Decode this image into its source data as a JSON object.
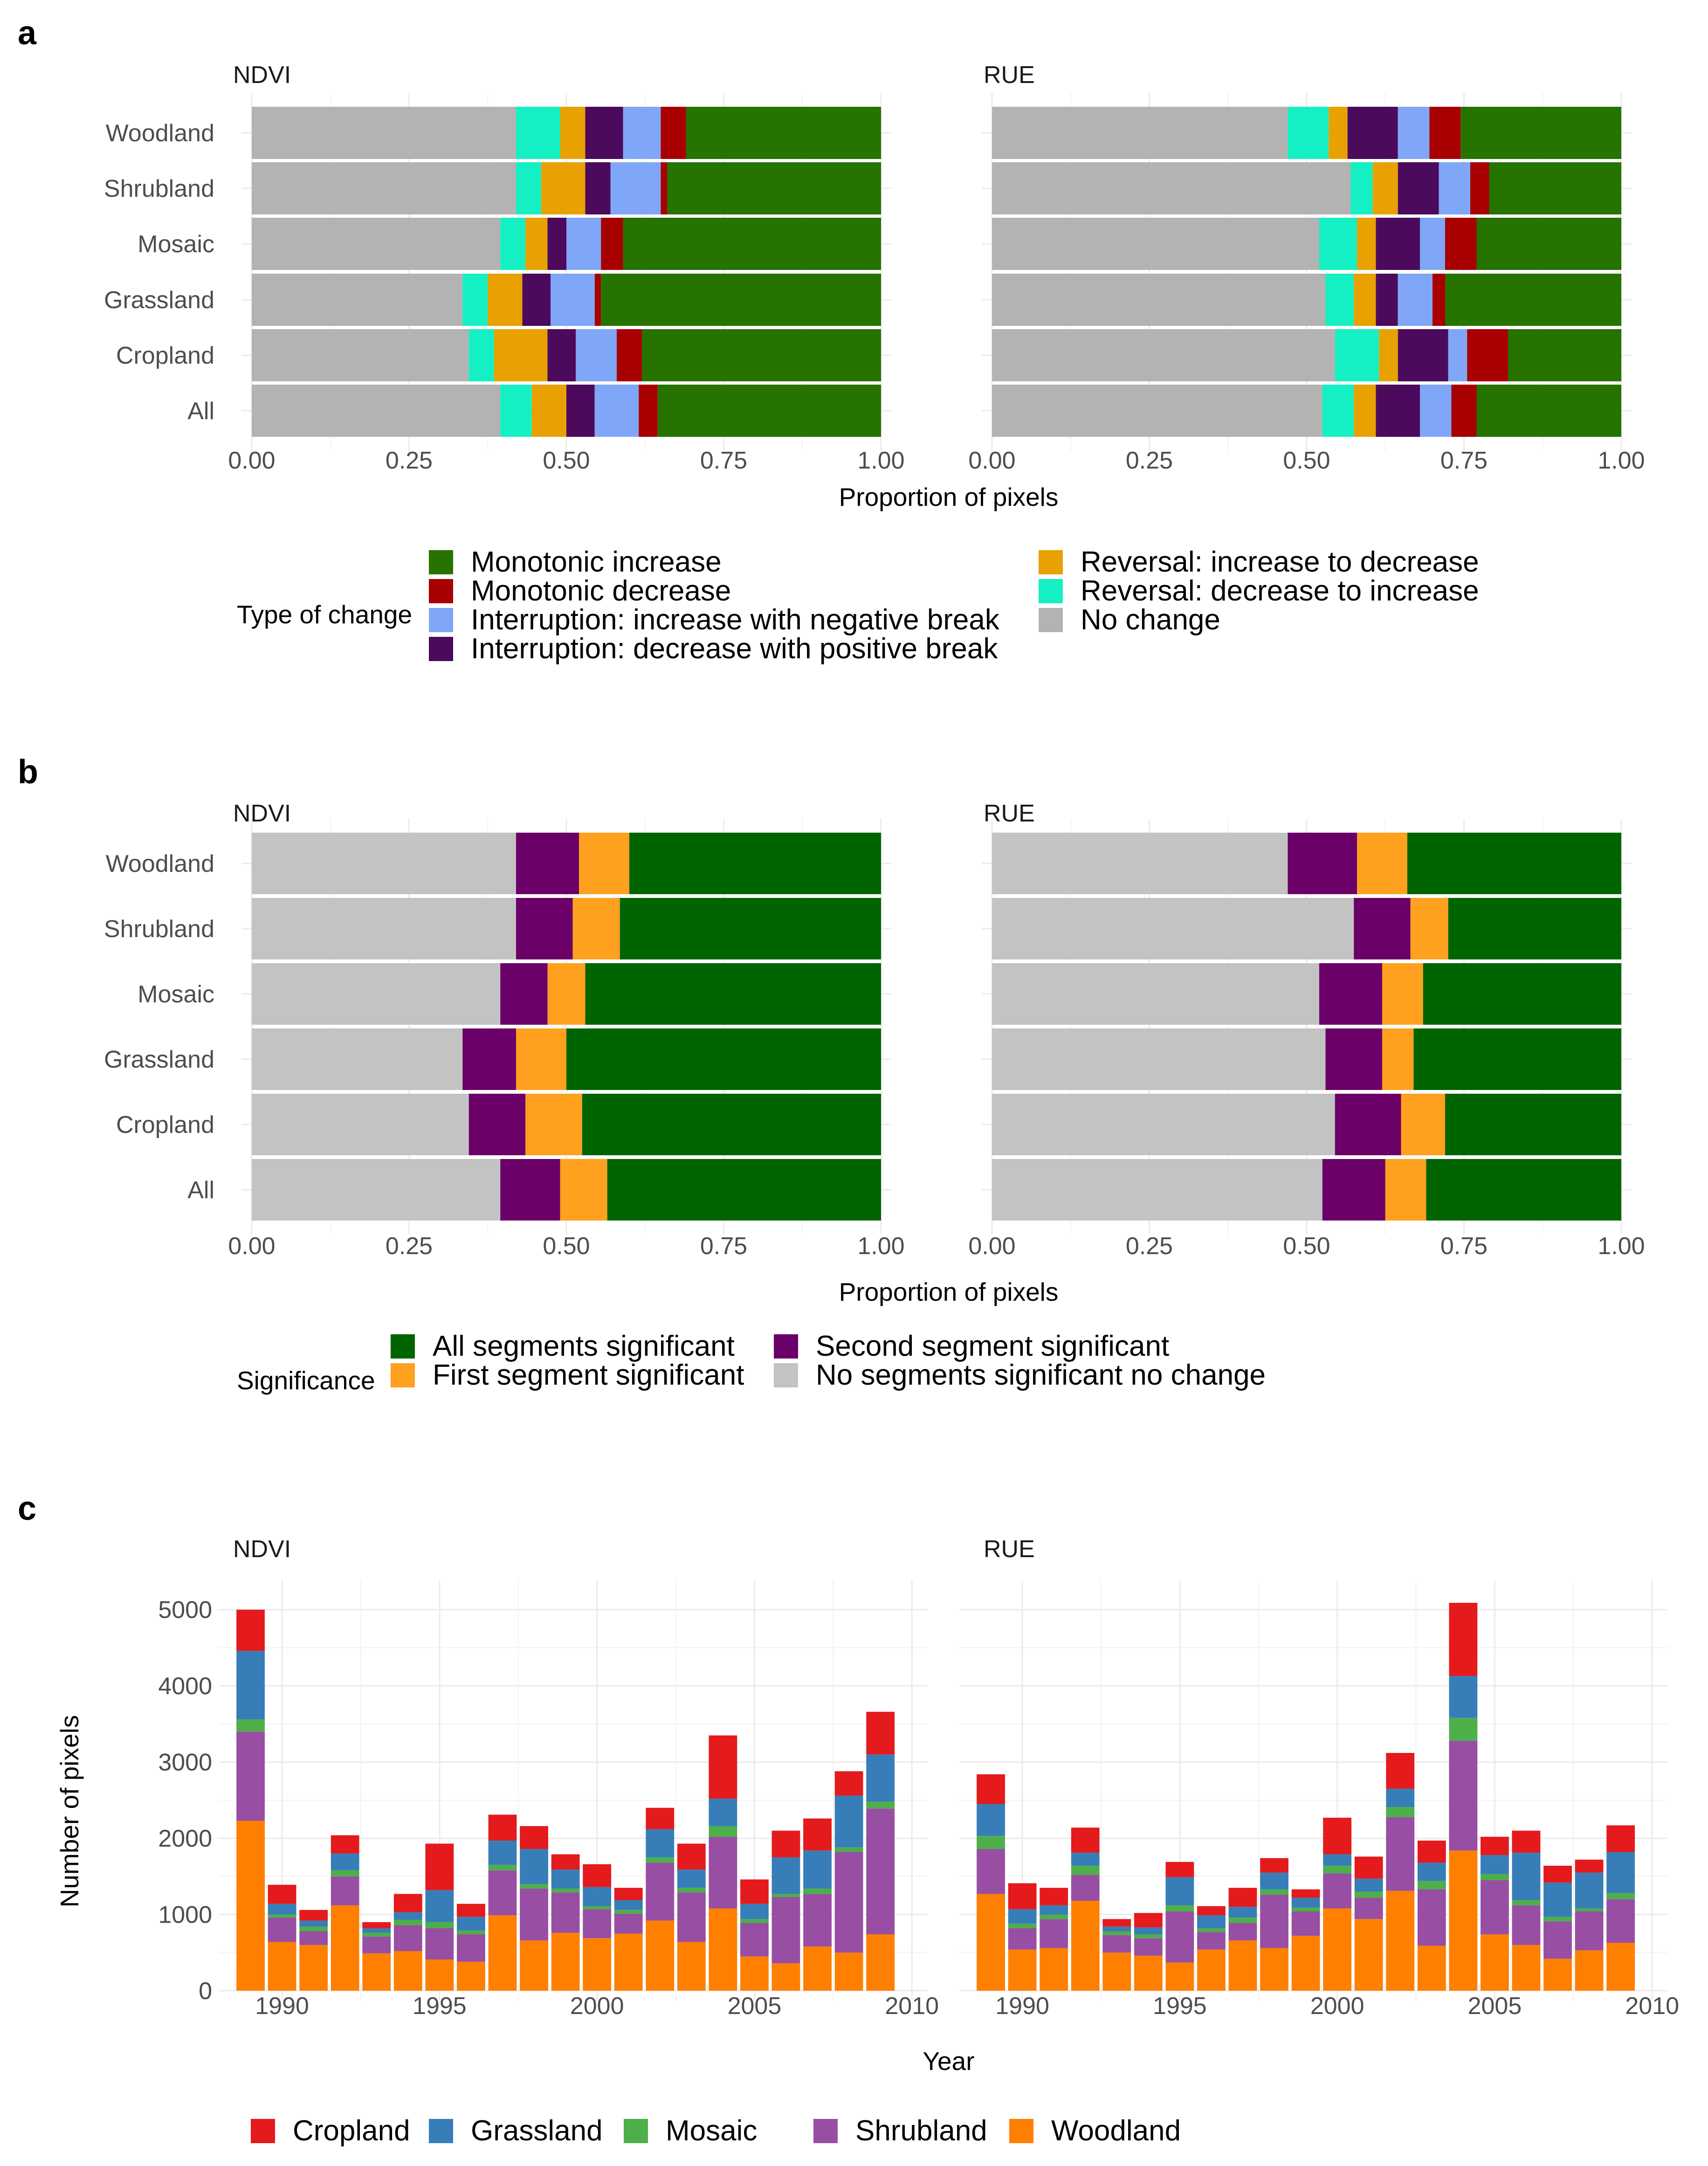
{
  "chart_data": [
    {
      "panel": "a",
      "type": "bar",
      "orientation": "horizontal",
      "stacked": true,
      "facets": [
        "NDVI",
        "RUE"
      ],
      "categories": [
        "Woodland",
        "Shrubland",
        "Mosaic",
        "Grassland",
        "Cropland",
        "All"
      ],
      "xlabel": "Proportion of pixels",
      "xlim": [
        0,
        1
      ],
      "xticks": [
        "0.00",
        "0.25",
        "0.50",
        "0.75",
        "1.00"
      ],
      "legend_title": "Type of change",
      "segment_order": [
        "No change",
        "Reversal: decrease to increase",
        "Reversal: increase to decrease",
        "Interruption: decrease with positive break",
        "Interruption: increase with negative break",
        "Monotonic decrease",
        "Monotonic increase"
      ],
      "legend": [
        {
          "label": "Monotonic increase",
          "color": "#267300"
        },
        {
          "label": "Monotonic decrease",
          "color": "#a80000"
        },
        {
          "label": "Interruption: increase with negative break",
          "color": "#7fa6f7"
        },
        {
          "label": "Interruption: decrease with positive break",
          "color": "#4b0a5c"
        },
        {
          "label": "Reversal: increase to decrease",
          "color": "#e8a100"
        },
        {
          "label": "Reversal: decrease to increase",
          "color": "#14f0c3"
        },
        {
          "label": "No change",
          "color": "#b3b3b3"
        }
      ],
      "series_values": {
        "NDVI": {
          "Woodland": [
            0.42,
            0.07,
            0.04,
            0.06,
            0.06,
            0.04,
            0.31
          ],
          "Shrubland": [
            0.42,
            0.04,
            0.07,
            0.04,
            0.08,
            0.01,
            0.34
          ],
          "Mosaic": [
            0.395,
            0.04,
            0.035,
            0.03,
            0.055,
            0.035,
            0.41
          ],
          "Grassland": [
            0.335,
            0.04,
            0.055,
            0.045,
            0.07,
            0.01,
            0.445
          ],
          "Cropland": [
            0.345,
            0.04,
            0.085,
            0.045,
            0.065,
            0.04,
            0.38
          ],
          "All": [
            0.395,
            0.05,
            0.055,
            0.045,
            0.07,
            0.03,
            0.355
          ]
        },
        "RUE": {
          "Woodland": [
            0.47,
            0.065,
            0.03,
            0.08,
            0.05,
            0.05,
            0.255
          ],
          "Shrubland": [
            0.57,
            0.035,
            0.04,
            0.065,
            0.05,
            0.03,
            0.21
          ],
          "Mosaic": [
            0.52,
            0.06,
            0.03,
            0.07,
            0.04,
            0.05,
            0.23
          ],
          "Grassland": [
            0.53,
            0.045,
            0.035,
            0.035,
            0.055,
            0.02,
            0.28
          ],
          "Cropland": [
            0.545,
            0.07,
            0.03,
            0.08,
            0.03,
            0.065,
            0.18
          ],
          "All": [
            0.525,
            0.05,
            0.035,
            0.07,
            0.05,
            0.04,
            0.23
          ]
        }
      }
    },
    {
      "panel": "b",
      "type": "bar",
      "orientation": "horizontal",
      "stacked": true,
      "facets": [
        "NDVI",
        "RUE"
      ],
      "categories": [
        "Woodland",
        "Shrubland",
        "Mosaic",
        "Grassland",
        "Cropland",
        "All"
      ],
      "xlabel": "Proportion of pixels",
      "xlim": [
        0,
        1
      ],
      "xticks": [
        "0.00",
        "0.25",
        "0.50",
        "0.75",
        "1.00"
      ],
      "legend_title": "Significance",
      "segment_order": [
        "No segments significant no change",
        "Second segment significant",
        "First segment significant",
        "All segments significant"
      ],
      "legend": [
        {
          "label": "All segments significant",
          "color": "#006400"
        },
        {
          "label": "First segment significant",
          "color": "#ffa01e"
        },
        {
          "label": "Second segment significant",
          "color": "#6a0068"
        },
        {
          "label": "No segments significant no change",
          "color": "#c3c3c3"
        }
      ],
      "series_values": {
        "NDVI": {
          "Woodland": [
            0.42,
            0.1,
            0.08,
            0.4
          ],
          "Shrubland": [
            0.42,
            0.09,
            0.075,
            0.415
          ],
          "Mosaic": [
            0.395,
            0.075,
            0.06,
            0.47
          ],
          "Grassland": [
            0.335,
            0.085,
            0.08,
            0.5
          ],
          "Cropland": [
            0.345,
            0.09,
            0.09,
            0.475
          ],
          "All": [
            0.395,
            0.095,
            0.075,
            0.435
          ]
        },
        "RUE": {
          "Woodland": [
            0.47,
            0.11,
            0.08,
            0.34
          ],
          "Shrubland": [
            0.575,
            0.09,
            0.06,
            0.275
          ],
          "Mosaic": [
            0.52,
            0.1,
            0.065,
            0.315
          ],
          "Grassland": [
            0.53,
            0.09,
            0.05,
            0.33
          ],
          "Cropland": [
            0.545,
            0.105,
            0.07,
            0.28
          ],
          "All": [
            0.525,
            0.1,
            0.065,
            0.31
          ]
        }
      }
    },
    {
      "panel": "c",
      "type": "bar",
      "orientation": "vertical",
      "stacked": true,
      "facets": [
        "NDVI",
        "RUE"
      ],
      "x": [
        1989,
        1990,
        1991,
        1992,
        1993,
        1994,
        1995,
        1996,
        1997,
        1998,
        1999,
        2000,
        2001,
        2002,
        2003,
        2004,
        2005,
        2006,
        2007,
        2008,
        2009
      ],
      "xlabel": "Year",
      "ylabel": "Number of pixels",
      "ylim": [
        0,
        5200
      ],
      "yticks": [
        "0",
        "1000",
        "2000",
        "3000",
        "4000",
        "5000"
      ],
      "xticks": [
        "1990",
        "1995",
        "2000",
        "2005",
        "2010"
      ],
      "xlim": [
        1988.0,
        2010.5
      ],
      "stack_order": [
        "Woodland",
        "Shrubland",
        "Mosaic",
        "Grassland",
        "Cropland"
      ],
      "legend": [
        {
          "label": "Cropland",
          "color": "#e41a1c"
        },
        {
          "label": "Grassland",
          "color": "#377eb8"
        },
        {
          "label": "Mosaic",
          "color": "#4daf4a"
        },
        {
          "label": "Shrubland",
          "color": "#984ea3"
        },
        {
          "label": "Woodland",
          "color": "#ff7f00"
        }
      ],
      "series": {
        "NDVI": {
          "Woodland": [
            2230,
            640,
            600,
            1120,
            490,
            520,
            410,
            380,
            990,
            660,
            760,
            690,
            750,
            920,
            640,
            1080,
            450,
            360,
            580,
            500,
            740
          ],
          "Shrubland": [
            1170,
            320,
            180,
            380,
            220,
            340,
            410,
            360,
            590,
            680,
            530,
            380,
            260,
            760,
            650,
            940,
            440,
            870,
            690,
            1320,
            1650
          ],
          "Mosaic": [
            160,
            40,
            60,
            80,
            50,
            70,
            80,
            50,
            70,
            60,
            50,
            40,
            50,
            70,
            60,
            140,
            50,
            40,
            70,
            60,
            90
          ],
          "Grassland": [
            900,
            140,
            80,
            220,
            60,
            100,
            420,
            180,
            320,
            460,
            250,
            250,
            130,
            370,
            240,
            360,
            200,
            480,
            500,
            680,
            620
          ],
          "Cropland": [
            540,
            250,
            140,
            240,
            80,
            240,
            610,
            170,
            340,
            300,
            200,
            300,
            160,
            280,
            340,
            830,
            320,
            350,
            420,
            320,
            560
          ]
        },
        "RUE": {
          "Woodland": [
            1270,
            540,
            560,
            1180,
            500,
            460,
            370,
            540,
            660,
            560,
            720,
            1080,
            940,
            1310,
            590,
            1840,
            740,
            600,
            420,
            530,
            630
          ],
          "Shrubland": [
            590,
            280,
            380,
            340,
            230,
            230,
            670,
            230,
            230,
            700,
            320,
            460,
            280,
            970,
            740,
            1440,
            710,
            520,
            490,
            510,
            570
          ],
          "Mosaic": [
            170,
            60,
            60,
            120,
            50,
            50,
            80,
            50,
            70,
            70,
            50,
            100,
            80,
            130,
            110,
            300,
            80,
            70,
            60,
            40,
            80
          ],
          "Grassland": [
            420,
            190,
            120,
            170,
            60,
            90,
            370,
            170,
            140,
            220,
            130,
            150,
            170,
            240,
            240,
            550,
            250,
            620,
            450,
            470,
            540
          ],
          "Cropland": [
            390,
            340,
            230,
            330,
            100,
            190,
            200,
            120,
            250,
            190,
            110,
            480,
            290,
            470,
            290,
            960,
            240,
            290,
            220,
            170,
            350
          ]
        }
      }
    }
  ]
}
